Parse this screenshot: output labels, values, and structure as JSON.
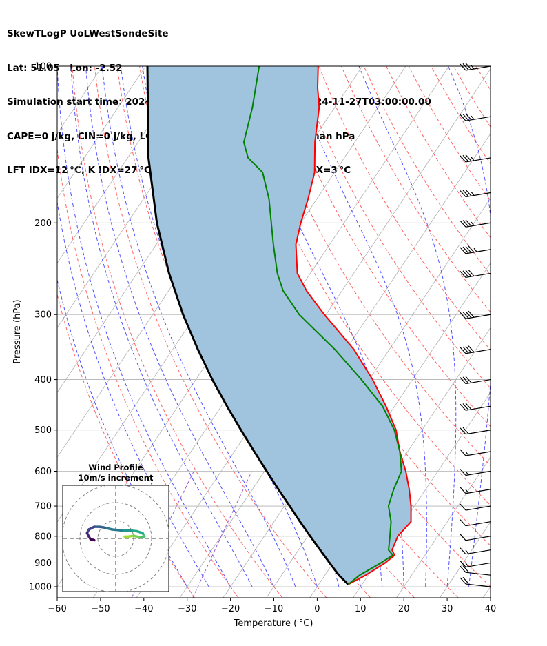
{
  "title_lines": [
    "SkewTLogP UoLWestSondeSite",
    "Lat: 51.05   Lon: -2.52",
    "Simulation start time: 2024-11-26_00:00:00, Valid time: 2024-11-27T03:00:00.00",
    "CAPE=0 j/kg, CIN=0 j/kg, LCL=978 hPa, LFC=nan hPa, EQ=nan hPa",
    "LFT IDX=12 °C, K IDX=27 °C, TOTAL TOTS=50 °C, SHWTR_IDX=3 °C"
  ],
  "colors": {
    "temperature": "#ff0000",
    "dewpoint": "#008000",
    "parcel": "#000000",
    "shading": "#a0c4de",
    "dry_adiabats": "#ff6464",
    "moist_adiabats": "#5050ff",
    "mixing_ratio": "#9955cc",
    "isotherms": "#b0b0b0"
  },
  "chart_data": {
    "type": "line",
    "title": "SkewTLogP UoLWestSondeSite",
    "xlabel": "Temperature ( °C)",
    "ylabel": "Pressure (hPa)",
    "xlim": [
      -60,
      40
    ],
    "ylim": [
      1050,
      100
    ],
    "yscale": "log",
    "grid": true,
    "x_ticks": [
      -60,
      -50,
      -40,
      -30,
      -20,
      -10,
      0,
      10,
      20,
      30,
      40
    ],
    "x_tick_labels": [
      "−60",
      "−50",
      "−40",
      "−30",
      "−20",
      "−10",
      "0",
      "10",
      "20",
      "30",
      "40"
    ],
    "y_ticks": [
      1000,
      900,
      800,
      700,
      600,
      500,
      400,
      300,
      200,
      100
    ],
    "series": [
      {
        "name": "temperature",
        "pressure": [
          990,
          950,
          900,
          870,
          850,
          800,
          750,
          700,
          650,
          600,
          550,
          500,
          450,
          400,
          350,
          300,
          270,
          250,
          220,
          200,
          180,
          160,
          140,
          120,
          110,
          100
        ],
        "temp": [
          6.8,
          9.4,
          12.0,
          13.0,
          11.6,
          10.8,
          11.6,
          9.2,
          6.2,
          2.6,
          -1.8,
          -6.0,
          -12.0,
          -19.2,
          -28.2,
          -40.4,
          -48.2,
          -53.0,
          -57.8,
          -60.0,
          -62.0,
          -64.6,
          -69.2,
          -73.6,
          -77.0,
          -80.2
        ]
      },
      {
        "name": "dewpoint",
        "pressure": [
          990,
          950,
          900,
          870,
          850,
          800,
          750,
          700,
          650,
          600,
          550,
          500,
          450,
          400,
          350,
          300,
          270,
          250,
          220,
          200,
          180,
          160,
          150,
          140,
          120,
          100
        ],
        "temp": [
          6.8,
          8.0,
          11.0,
          12.6,
          10.8,
          9.0,
          7.0,
          4.0,
          2.6,
          1.6,
          -1.8,
          -6.4,
          -12.8,
          -21.8,
          -32.6,
          -46.2,
          -53.6,
          -57.6,
          -63.0,
          -66.8,
          -71.0,
          -76.6,
          -82.2,
          -85.6,
          -89.0,
          -93.8
        ]
      },
      {
        "name": "parcel",
        "pressure": [
          990,
          950,
          900,
          850,
          800,
          750,
          700,
          650,
          600,
          550,
          500,
          450,
          400,
          350,
          300,
          250,
          200,
          150,
          100
        ],
        "temp": [
          6.8,
          3.2,
          -0.8,
          -5.0,
          -9.4,
          -14.0,
          -18.8,
          -24.0,
          -29.5,
          -35.4,
          -41.8,
          -48.7,
          -56.2,
          -64.2,
          -73.0,
          -82.6,
          -93.2,
          -105.2,
          -119.6
        ]
      }
    ],
    "wind_barbs": {
      "pressure": [
        100,
        125,
        150,
        175,
        200,
        225,
        250,
        300,
        350,
        400,
        450,
        500,
        550,
        600,
        650,
        700,
        750,
        800,
        850,
        900,
        950,
        1000
      ],
      "speed_kt": [
        35,
        35,
        35,
        35,
        35,
        45,
        40,
        40,
        40,
        30,
        30,
        20,
        15,
        15,
        15,
        10,
        10,
        10,
        15,
        15,
        20,
        20
      ]
    },
    "hodograph": {
      "title": "Wind Profile",
      "subtitle": "10m/s increment",
      "u": [
        5,
        7,
        10,
        12,
        14,
        16,
        15,
        12,
        8,
        3,
        -2,
        -6,
        -9,
        -12,
        -15,
        -16,
        -15,
        -14,
        -12
      ],
      "v": [
        1,
        1,
        1.5,
        1,
        0.5,
        1,
        3,
        4,
        4.5,
        4.5,
        5,
        6,
        6.5,
        6.5,
        5,
        3,
        1,
        -0.5,
        -1
      ]
    }
  }
}
